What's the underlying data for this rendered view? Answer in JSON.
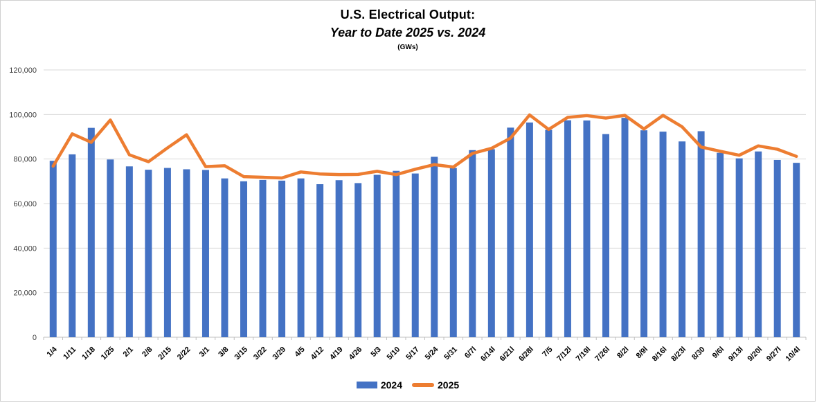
{
  "title": {
    "line1": "U.S. Electrical Output:",
    "line2": "Year to Date 2025 vs. 2024",
    "units": "(GWs)"
  },
  "colors": {
    "background": "#ffffff",
    "border": "#cfcfcf",
    "grid": "#d9d9d9",
    "axis_line": "#bfbfbf",
    "y_tick_label": "#404040",
    "x_tick_label": "#000000",
    "bar_2024": "#4472C4",
    "line_2025": "#ED7D31"
  },
  "chart_data": {
    "type": "combo",
    "title": "U.S. Electrical Output: Year to Date 2025 vs. 2024",
    "ylabel": "GWs",
    "ylim": [
      0,
      120000
    ],
    "y_tick_step": 20000,
    "y_tick_labels": [
      "0",
      "20,000",
      "40,000",
      "60,000",
      "80,000",
      "100,000",
      "120,000"
    ],
    "grid": "horizontal",
    "legend_position": "bottom",
    "categories": [
      "1/4",
      "1/11",
      "1/18",
      "1/25",
      "2/1",
      "2/8",
      "2/15",
      "2/22",
      "3/1",
      "3/8",
      "3/15",
      "3/22",
      "3/29",
      "4/5",
      "4/12",
      "4/19",
      "4/26",
      "5/3",
      "5/10",
      "5/17",
      "5/24",
      "5/31",
      "6/7l",
      "6/14l",
      "6/21l",
      "6/28l",
      "7/5",
      "7/12l",
      "7/19l",
      "7/26l",
      "8/2l",
      "8/9l",
      "8/16l",
      "8/23l",
      "8/30",
      "9/6l",
      "9/13l",
      "9/20l",
      "9/27l",
      "10/4l"
    ],
    "series": [
      {
        "name": "2024",
        "type": "bar",
        "color": "#4472C4",
        "values": [
          79200,
          82100,
          94000,
          79800,
          76700,
          75200,
          76000,
          75400,
          75100,
          71300,
          70000,
          70600,
          70300,
          71300,
          68700,
          70500,
          69200,
          72900,
          74700,
          73500,
          81000,
          76000,
          84000,
          84400,
          94100,
          96400,
          93100,
          97400,
          97300,
          91200,
          98500,
          92900,
          92300,
          87900,
          92500,
          82800,
          80300,
          83400,
          79600,
          78300
        ]
      },
      {
        "name": "2025",
        "type": "line",
        "color": "#ED7D31",
        "values": [
          76800,
          91300,
          87500,
          97500,
          81900,
          78800,
          85000,
          90900,
          76600,
          77000,
          72100,
          71800,
          71500,
          74200,
          73300,
          73000,
          73100,
          74500,
          73000,
          75400,
          77500,
          76400,
          82500,
          84800,
          89400,
          99800,
          93300,
          98700,
          99500,
          98400,
          99600,
          93500,
          99600,
          94500,
          85400,
          83500,
          81700,
          85900,
          84400,
          81200
        ]
      }
    ]
  }
}
